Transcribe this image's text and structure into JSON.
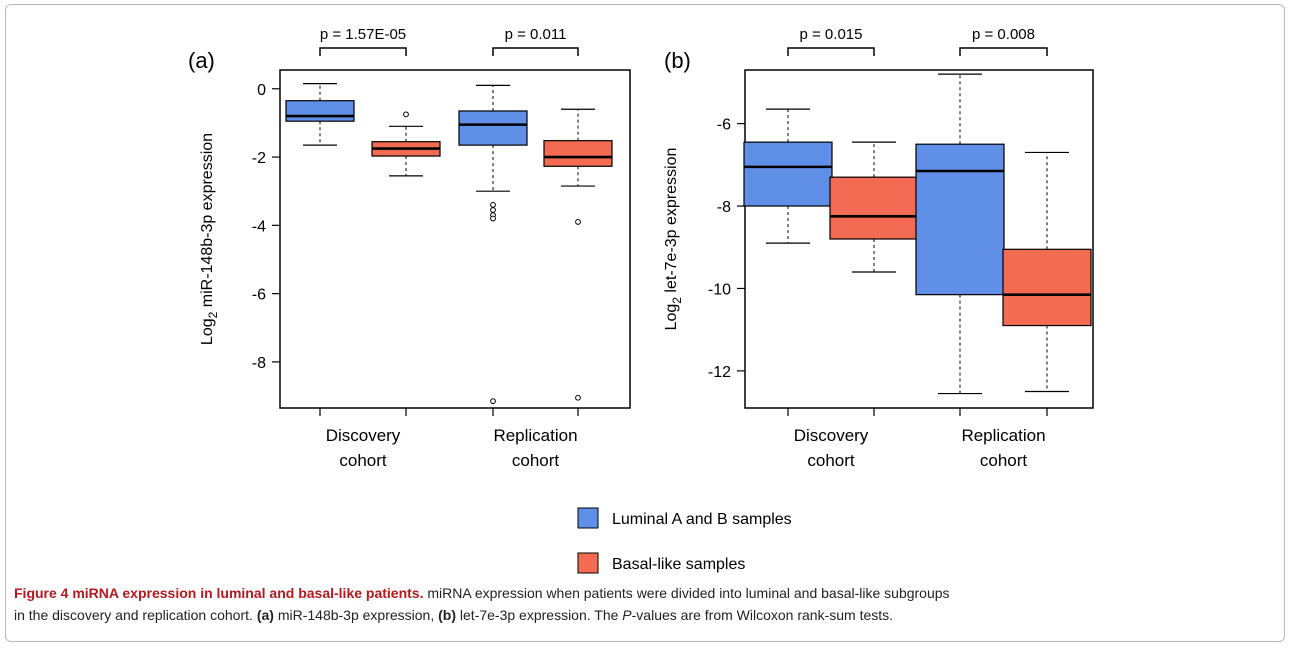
{
  "figure": {
    "legend": [
      {
        "label": "Luminal A and B samples",
        "color": "#5f8fe6"
      },
      {
        "label": "Basal-like samples",
        "color": "#f36b52"
      }
    ],
    "caption": {
      "title": "Figure 4 miRNA expression in luminal and basal-like patients.",
      "line1": "miRNA expression when patients were divided into luminal and basal-like subgroups",
      "line2_a": "in the discovery and replication cohort.",
      "ref_a": "(a)",
      "line2_b": "miR-148b-3p expression,",
      "ref_b": "(b)",
      "line2_c": "let-7e-3p expression. The",
      "p_word": "P",
      "line2_d": "-values are from Wilcoxon rank-sum tests."
    }
  },
  "chart_data": [
    {
      "type": "box",
      "panel_label": "(a)",
      "ylabel_prefix": "Log",
      "ylabel_sub": "2",
      "ylabel_rest": "miR-148b-3p expression",
      "ylim": [
        -9.35,
        0.55
      ],
      "yticks": [
        0,
        -2,
        -4,
        -6,
        -8
      ],
      "yticklabels": [
        "0",
        "-2",
        "-4",
        "-6",
        "-8"
      ],
      "groups": [
        {
          "line1": "Discovery",
          "line2": "cohort"
        },
        {
          "line1": "Replication",
          "line2": "cohort"
        }
      ],
      "pvalues": [
        "p = 1.57E-05",
        "p = 0.011"
      ],
      "boxes": [
        {
          "group": 0,
          "series": 0,
          "whisker_low": -1.65,
          "q1": -0.95,
          "median": -0.8,
          "q3": -0.35,
          "whisker_high": 0.15,
          "outliers": []
        },
        {
          "group": 0,
          "series": 1,
          "whisker_low": -2.55,
          "q1": -1.97,
          "median": -1.75,
          "q3": -1.55,
          "whisker_high": -1.1,
          "outliers": [
            -0.75
          ]
        },
        {
          "group": 1,
          "series": 0,
          "whisker_low": -3.0,
          "q1": -1.65,
          "median": -1.05,
          "q3": -0.65,
          "whisker_high": 0.1,
          "outliers": [
            -3.4,
            -3.55,
            -3.7,
            -3.8,
            -9.15
          ]
        },
        {
          "group": 1,
          "series": 1,
          "whisker_low": -2.85,
          "q1": -2.27,
          "median": -2.0,
          "q3": -1.52,
          "whisker_high": -0.6,
          "outliers": [
            -3.9,
            -9.05
          ]
        }
      ]
    },
    {
      "type": "box",
      "panel_label": "(b)",
      "ylabel_prefix": "Log",
      "ylabel_sub": "2",
      "ylabel_rest": "let-7e-3p expression",
      "ylim": [
        -12.9,
        -4.7
      ],
      "yticks": [
        -6,
        -8,
        -10,
        -12
      ],
      "yticklabels": [
        "-6",
        "-8",
        "-10",
        "-12"
      ],
      "groups": [
        {
          "line1": "Discovery",
          "line2": "cohort"
        },
        {
          "line1": "Replication",
          "line2": "cohort"
        }
      ],
      "pvalues": [
        "p = 0.015",
        "p = 0.008"
      ],
      "boxes": [
        {
          "group": 0,
          "series": 0,
          "whisker_low": -8.9,
          "q1": -8.0,
          "median": -7.05,
          "q3": -6.45,
          "whisker_high": -5.65,
          "outliers": []
        },
        {
          "group": 0,
          "series": 1,
          "whisker_low": -9.6,
          "q1": -8.8,
          "median": -8.25,
          "q3": -7.3,
          "whisker_high": -6.45,
          "outliers": []
        },
        {
          "group": 1,
          "series": 0,
          "whisker_low": -12.55,
          "q1": -10.15,
          "median": -7.15,
          "q3": -6.5,
          "whisker_high": -4.8,
          "outliers": []
        },
        {
          "group": 1,
          "series": 1,
          "whisker_low": -12.5,
          "q1": -10.9,
          "median": -10.15,
          "q3": -9.05,
          "whisker_high": -6.7,
          "outliers": []
        }
      ]
    }
  ]
}
